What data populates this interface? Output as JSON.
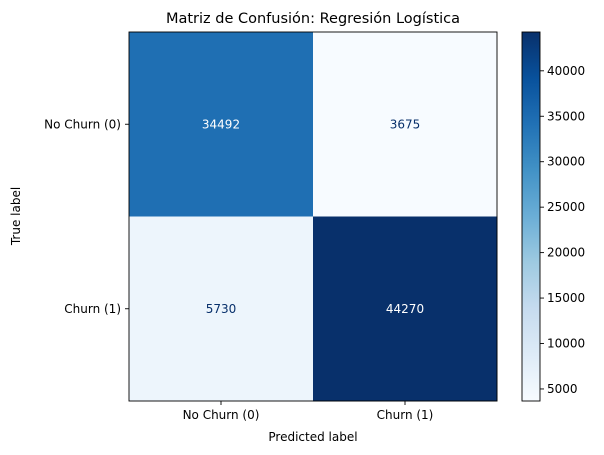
{
  "chart_data": {
    "type": "heatmap",
    "title": "Matriz de Confusión: Regresión Logística",
    "xlabel": "Predicted label",
    "ylabel": "True label",
    "x_categories": [
      "No Churn (0)",
      "Churn (1)"
    ],
    "y_categories": [
      "No Churn (0)",
      "Churn (1)"
    ],
    "matrix": [
      [
        34492,
        3675
      ],
      [
        5730,
        44270
      ]
    ],
    "colormap": "Blues",
    "colorbar": {
      "min": 3675,
      "max": 44270,
      "ticks": [
        5000,
        10000,
        15000,
        20000,
        25000,
        30000,
        35000,
        40000
      ]
    },
    "text_color_light": "#ffffff",
    "text_color_dark": "#08306b"
  }
}
